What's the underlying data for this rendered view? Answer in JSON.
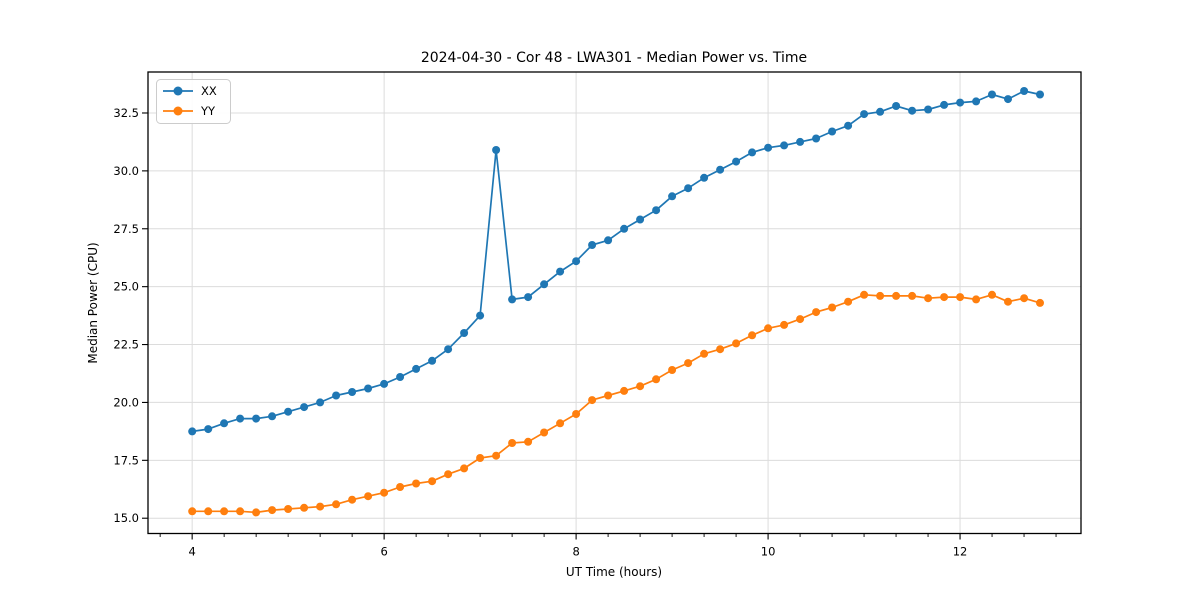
{
  "chart_data": {
    "type": "line",
    "title": "2024-04-30 - Cor 48 - LWA301 - Median Power vs. Time",
    "xlabel": "UT Time (hours)",
    "ylabel": "Median Power (CPU)",
    "xlim": [
      3.54,
      13.26
    ],
    "ylim": [
      14.34,
      34.27
    ],
    "grid": true,
    "background": "#ffffff",
    "grid_color": "#dcdcdc",
    "xticks": {
      "major": [
        4,
        6,
        8,
        10,
        12
      ],
      "major_labels": [
        "4",
        "6",
        "8",
        "10",
        "12"
      ],
      "minor_interval": 0.3333333
    },
    "yticks": {
      "major": [
        15.0,
        17.5,
        20.0,
        22.5,
        25.0,
        27.5,
        30.0,
        32.5
      ],
      "major_labels": [
        "15.0",
        "17.5",
        "20.0",
        "22.5",
        "25.0",
        "27.5",
        "30.0",
        "32.5"
      ]
    },
    "legend": {
      "position": "upper-left",
      "entries": [
        {
          "label": "XX",
          "color": "#1f77b4"
        },
        {
          "label": "YY",
          "color": "#ff7f0e"
        }
      ]
    },
    "x": [
      4.0,
      4.1667,
      4.3333,
      4.5,
      4.6667,
      4.8333,
      5.0,
      5.1667,
      5.3333,
      5.5,
      5.6667,
      5.8333,
      6.0,
      6.1667,
      6.3333,
      6.5,
      6.6667,
      6.8333,
      7.0,
      7.1667,
      7.3333,
      7.5,
      7.6667,
      7.8333,
      8.0,
      8.1667,
      8.3333,
      8.5,
      8.6667,
      8.8333,
      9.0,
      9.1667,
      9.3333,
      9.5,
      9.6667,
      9.8333,
      10.0,
      10.1667,
      10.3333,
      10.5,
      10.6667,
      10.8333,
      11.0,
      11.1667,
      11.3333,
      11.5,
      11.6667,
      11.8333,
      12.0,
      12.1667,
      12.3333,
      12.5,
      12.6667,
      12.8333
    ],
    "series": [
      {
        "name": "XX",
        "color": "#1f77b4",
        "values": [
          18.75,
          18.85,
          19.1,
          19.3,
          19.3,
          19.4,
          19.6,
          19.8,
          20.0,
          20.3,
          20.45,
          20.6,
          20.8,
          21.1,
          21.45,
          21.8,
          22.3,
          23.0,
          23.75,
          30.9,
          24.45,
          24.55,
          25.1,
          25.65,
          26.1,
          26.8,
          27.0,
          27.5,
          27.9,
          28.3,
          28.9,
          29.25,
          29.7,
          30.05,
          30.4,
          30.8,
          31.0,
          31.1,
          31.25,
          31.4,
          31.7,
          31.95,
          32.45,
          32.55,
          32.8,
          32.6,
          32.65,
          32.85,
          32.95,
          33.0,
          33.3,
          33.1,
          33.45,
          33.3
        ]
      },
      {
        "name": "YY",
        "color": "#ff7f0e",
        "values": [
          15.3,
          15.3,
          15.3,
          15.3,
          15.25,
          15.35,
          15.4,
          15.45,
          15.5,
          15.6,
          15.8,
          15.95,
          16.1,
          16.35,
          16.5,
          16.6,
          16.9,
          17.15,
          17.6,
          17.7,
          18.25,
          18.3,
          18.7,
          19.1,
          19.5,
          20.1,
          20.3,
          20.5,
          20.7,
          21.0,
          21.4,
          21.7,
          22.1,
          22.3,
          22.55,
          22.9,
          23.2,
          23.35,
          23.6,
          23.9,
          24.1,
          24.35,
          24.65,
          24.6,
          24.6,
          24.6,
          24.5,
          24.55,
          24.55,
          24.45,
          24.65,
          24.35,
          24.5,
          24.3
        ]
      }
    ]
  }
}
